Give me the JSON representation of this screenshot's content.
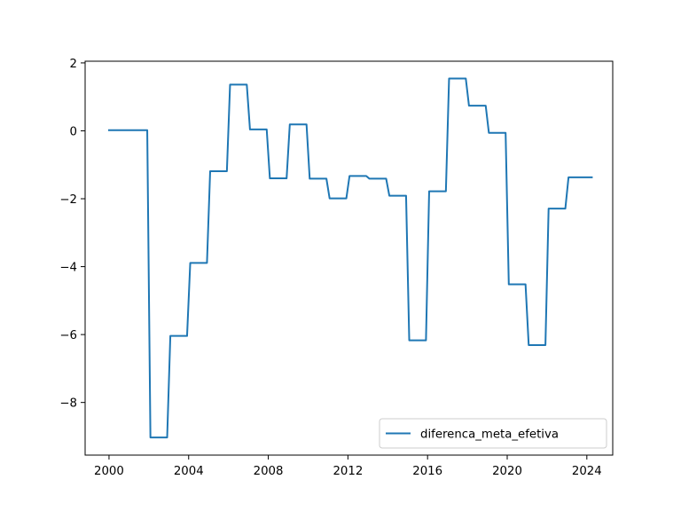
{
  "chart_data": {
    "type": "line",
    "title": "",
    "xlabel": "",
    "ylabel": "",
    "xlim": [
      1998.8,
      2025.3
    ],
    "ylim": [
      -9.55,
      2.05
    ],
    "grid": false,
    "legend_position": "bottom-right",
    "x_ticks": [
      {
        "value": 2000,
        "label": "2000"
      },
      {
        "value": 2004,
        "label": "2004"
      },
      {
        "value": 2008,
        "label": "2008"
      },
      {
        "value": 2012,
        "label": "2012"
      },
      {
        "value": 2016,
        "label": "2016"
      },
      {
        "value": 2020,
        "label": "2020"
      },
      {
        "value": 2024,
        "label": "2024"
      }
    ],
    "y_ticks": [
      {
        "value": 2,
        "label": "2"
      },
      {
        "value": 0,
        "label": "0"
      },
      {
        "value": -2,
        "label": "−2"
      },
      {
        "value": -4,
        "label": "−4"
      },
      {
        "value": -6,
        "label": "−6"
      },
      {
        "value": -8,
        "label": "−8"
      }
    ],
    "series": [
      {
        "name": "diferenca_meta_efetiva",
        "color": "#1f77b4",
        "x": [
          2000.0,
          2001.92,
          2002.08,
          2002.92,
          2003.08,
          2003.92,
          2004.08,
          2004.92,
          2005.08,
          2005.92,
          2006.08,
          2006.92,
          2007.08,
          2007.92,
          2008.08,
          2008.92,
          2009.08,
          2009.92,
          2010.08,
          2010.92,
          2011.08,
          2011.92,
          2012.08,
          2012.92,
          2013.08,
          2013.92,
          2014.08,
          2014.92,
          2015.08,
          2015.92,
          2016.08,
          2016.92,
          2017.08,
          2017.92,
          2018.08,
          2018.92,
          2019.08,
          2019.92,
          2020.08,
          2020.92,
          2021.08,
          2021.92,
          2022.08,
          2022.92,
          2023.08,
          2024.25
        ],
        "y": [
          0.02,
          0.02,
          -9.03,
          -9.03,
          -6.04,
          -6.04,
          -3.89,
          -3.89,
          -1.19,
          -1.19,
          1.36,
          1.36,
          0.04,
          0.04,
          -1.4,
          -1.4,
          0.19,
          0.19,
          -1.41,
          -1.41,
          -1.99,
          -1.99,
          -1.33,
          -1.33,
          -1.41,
          -1.41,
          -1.91,
          -1.91,
          -6.17,
          -6.17,
          -1.78,
          -1.78,
          1.54,
          1.54,
          0.74,
          0.74,
          -0.06,
          -0.06,
          -4.52,
          -4.52,
          -6.31,
          -6.31,
          -2.29,
          -2.29,
          -1.37,
          -1.37
        ]
      }
    ]
  }
}
